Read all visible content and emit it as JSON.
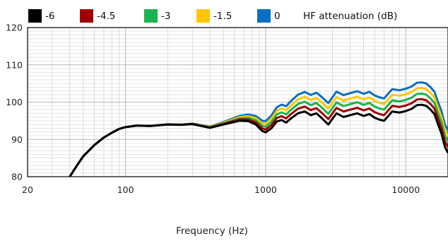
{
  "chart_data": {
    "type": "line",
    "title": "",
    "xlabel": "Frequency (Hz)",
    "ylabel": "",
    "x_scale": "log",
    "xlim": [
      20,
      20000
    ],
    "ylim": [
      80,
      120
    ],
    "x_ticks": [
      20,
      100,
      1000,
      10000
    ],
    "x_tick_labels": [
      "20",
      "100",
      "1000",
      "10000"
    ],
    "y_ticks": [
      80,
      90,
      100,
      110,
      120
    ],
    "y_tick_labels": [
      "80",
      "90",
      "100",
      "110",
      "120"
    ],
    "grid": true,
    "legend_position": "top",
    "legend_title": "HF attenuation (dB)",
    "base_curve": {
      "x": [
        40,
        45,
        50,
        60,
        70,
        80,
        90,
        100,
        120,
        150,
        200,
        250,
        300,
        400,
        500,
        650,
        750,
        850,
        950,
        1000,
        1100,
        1200,
        1300,
        1400,
        1500,
        1700,
        1900,
        2100,
        2300,
        2500,
        2800,
        3200,
        3600,
        4000,
        4500,
        5000,
        5500,
        6000,
        6500,
        7000,
        8000,
        9000,
        10000,
        11000,
        12000,
        13000,
        14000,
        15000,
        16000,
        17000,
        18000,
        19000,
        20000
      ],
      "y": [
        80.0,
        83.0,
        85.5,
        88.5,
        90.5,
        91.8,
        92.8,
        93.3,
        93.7,
        93.6,
        94.0,
        93.9,
        94.1,
        93.1,
        94.0,
        95.0,
        94.9,
        94.0,
        92.2,
        91.9,
        93.0,
        94.8,
        95.2,
        94.5,
        95.5,
        97.0,
        97.5,
        96.5,
        97.0,
        95.8,
        94.0,
        97.0,
        96.0,
        96.5,
        97.0,
        96.3,
        96.8,
        95.8,
        95.3,
        95.0,
        97.5,
        97.2,
        97.6,
        98.2,
        99.2,
        99.3,
        99.0,
        98.0,
        96.8,
        94.0,
        91.5,
        88.0,
        86.4
      ]
    },
    "series": [
      {
        "name": "-6",
        "color": "#000000",
        "hf_gain": 0
      },
      {
        "name": "-4.5",
        "color": "#a00000",
        "hf_gain": 1.5
      },
      {
        "name": "-3",
        "color": "#1db34c",
        "hf_gain": 3
      },
      {
        "name": "-1.5",
        "color": "#ffc600",
        "hf_gain": 4.5
      },
      {
        "name": "0",
        "color": "#0a6fc2",
        "hf_gain": 6
      }
    ]
  }
}
